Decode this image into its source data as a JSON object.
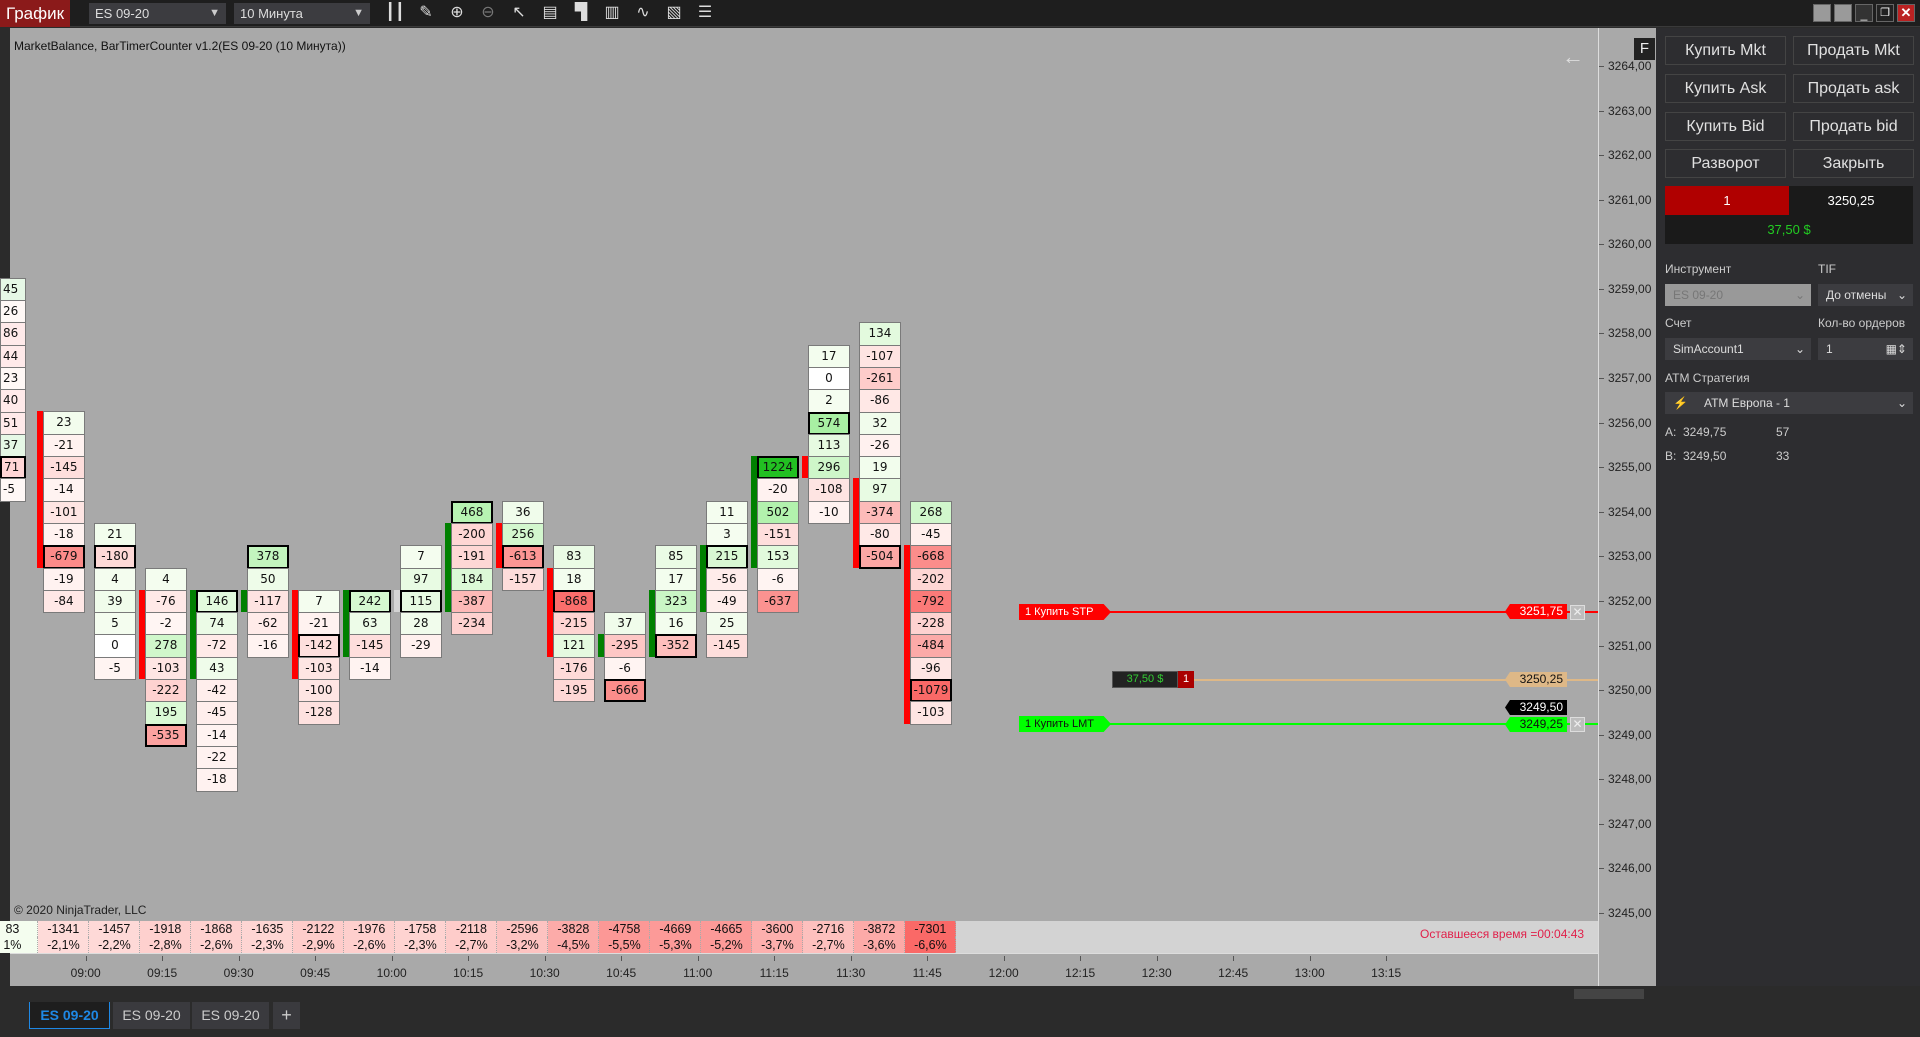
{
  "toolbar": {
    "chart_button": "График",
    "instrument": "ES 09-20",
    "interval": "10 Минута",
    "tools": [
      "bar-type-icon",
      "pencil-icon",
      "zoom-in-icon",
      "zoom-out-icon",
      "pointer-icon",
      "data-box-icon",
      "chart-trader-icon",
      "strategy-icon",
      "indicators-icon",
      "templates-icon",
      "properties-icon"
    ]
  },
  "chart": {
    "indicator_title": "MarketBalance, BarTimerCounter v1.2(ES 09-20 (10 Минута))",
    "f_button": "F",
    "back_arrow": "←",
    "price_labels": [
      "3264,00",
      "3263,00",
      "3262,00",
      "3261,00",
      "3260,00",
      "3259,00",
      "3258,00",
      "3257,00",
      "3256,00",
      "3255,00",
      "3254,00",
      "3253,00",
      "3252,00",
      "3251,00",
      "3250,00",
      "3249,00",
      "3248,00",
      "3247,00",
      "3246,00",
      "3245,00"
    ],
    "time_labels": [
      "09:00",
      "09:15",
      "09:30",
      "09:45",
      "10:00",
      "10:15",
      "10:30",
      "10:45",
      "11:00",
      "11:15",
      "11:30",
      "11:45",
      "12:00",
      "12:15",
      "12:30",
      "12:45",
      "13:00",
      "13:15"
    ],
    "columns": [
      {
        "top": 3259.0,
        "values": [
          "45",
          "26",
          "86",
          "44",
          "23",
          "40",
          "51",
          "37",
          "71",
          "-5"
        ],
        "hl": 8,
        "partial": true,
        "tones": [
          1,
          0,
          -1,
          -1,
          0,
          -1,
          -1,
          1,
          -2,
          0
        ]
      },
      {
        "top": 3256.0,
        "values": [
          "23",
          "-21",
          "-145",
          "-14",
          "-101",
          "-18",
          "-679",
          "-19",
          "-84"
        ],
        "hl": 6,
        "bar": {
          "color": "#ff0000",
          "from": 0,
          "to": 6
        }
      },
      {
        "top": 3253.5,
        "values": [
          "21",
          "-180",
          "4",
          "39",
          "5",
          "0",
          "-5"
        ],
        "hl": 1
      },
      {
        "top": 3252.5,
        "values": [
          "4",
          "-76",
          "-2",
          "278",
          "-103",
          "-222",
          "195",
          "-535"
        ],
        "hl": 7,
        "bar": {
          "color": "#ff0000",
          "from": 1,
          "to": 4
        }
      },
      {
        "top": 3252.0,
        "values": [
          "146",
          "74",
          "-72",
          "43",
          "-42",
          "-45",
          "-14",
          "-22",
          "-18"
        ],
        "hl": 0,
        "bar": {
          "color": "#008000",
          "from": 0,
          "to": 3
        }
      },
      {
        "top": 3253.0,
        "values": [
          "378",
          "50",
          "-117",
          "-62",
          "-16"
        ],
        "hl": 0,
        "bar": {
          "color": "#008000",
          "from": 2,
          "to": 2
        }
      },
      {
        "top": 3252.0,
        "values": [
          "7",
          "-21",
          "-142",
          "-103",
          "-100",
          "-128"
        ],
        "hl": 2,
        "bar": {
          "color": "#ff0000",
          "from": 0,
          "to": 3
        }
      },
      {
        "top": 3252.0,
        "values": [
          "242",
          "63",
          "-145",
          "-14"
        ],
        "hl": 0,
        "bar": {
          "color": "#008000",
          "from": 0,
          "to": 2
        }
      },
      {
        "top": 3253.0,
        "values": [
          "7",
          "97",
          "115",
          "28",
          "-29"
        ],
        "hl": 2,
        "bar": {
          "color": "#d3d3d3",
          "from": 2,
          "to": 2
        }
      },
      {
        "top": 3254.0,
        "values": [
          "468",
          "-200",
          "-191",
          "184",
          "-387",
          "-234"
        ],
        "hl": 0,
        "bar": {
          "color": "#008000",
          "from": 1,
          "to": 4
        }
      },
      {
        "top": 3254.0,
        "values": [
          "36",
          "256",
          "-613",
          "-157"
        ],
        "hl": 2,
        "bar": {
          "color": "#ff0000",
          "from": 1,
          "to": 2
        }
      },
      {
        "top": 3253.0,
        "values": [
          "83",
          "18",
          "-868",
          "-215",
          "121",
          "-176",
          "-195"
        ],
        "hl": 2,
        "bar": {
          "color": "#ff0000",
          "from": 1,
          "to": 4
        }
      },
      {
        "top": 3251.5,
        "values": [
          "37",
          "-295",
          "-6",
          "-666"
        ],
        "hl": 3,
        "bar": {
          "color": "#008000",
          "from": 1,
          "to": 1
        }
      },
      {
        "top": 3253.0,
        "values": [
          "85",
          "17",
          "323",
          "16",
          "-352"
        ],
        "hl": 4,
        "bar": {
          "color": "#008000",
          "from": 2,
          "to": 4
        }
      },
      {
        "top": 3254.0,
        "values": [
          "11",
          "3",
          "215",
          "-56",
          "-49",
          "25",
          "-145"
        ],
        "hl": 2,
        "bar": {
          "color": "#008000",
          "from": 2,
          "to": 4
        }
      },
      {
        "top": 3255.0,
        "values": [
          "1224",
          "-20",
          "502",
          "-151",
          "153",
          "-6",
          "-637"
        ],
        "hl": 0,
        "bar": {
          "color": "#008000",
          "from": 0,
          "to": 4
        }
      },
      {
        "top": 3257.5,
        "values": [
          "17",
          "0",
          "2",
          "574",
          "113",
          "296",
          "-108",
          "-10"
        ],
        "hl": 3,
        "bar": {
          "color": "#ff0000",
          "from": 5,
          "to": 5
        }
      },
      {
        "top": 3258.0,
        "values": [
          "134",
          "-107",
          "-261",
          "-86",
          "32",
          "-26",
          "19",
          "97",
          "-374",
          "-80",
          "-504"
        ],
        "hl": 10,
        "bar": {
          "color": "#ff0000",
          "from": 7,
          "to": 10
        }
      },
      {
        "top": 3254.0,
        "values": [
          "268",
          "-45",
          "-668",
          "-202",
          "-792",
          "-228",
          "-484",
          "-96",
          "-1079",
          "-103"
        ],
        "hl": 8,
        "bar": {
          "color": "#ff0000",
          "from": 2,
          "to": 9
        }
      }
    ],
    "bottom_delta": [
      "83",
      "-1341",
      "-1457",
      "-1918",
      "-1868",
      "-1635",
      "-2122",
      "-1976",
      "-1758",
      "-2118",
      "-2596",
      "-3828",
      "-4758",
      "-4669",
      "-4665",
      "-3600",
      "-2716",
      "-3872",
      "-7301"
    ],
    "bottom_pct": [
      "1%",
      "-2,1%",
      "-2,2%",
      "-2,8%",
      "-2,6%",
      "-2,3%",
      "-2,9%",
      "-2,6%",
      "-2,3%",
      "-2,7%",
      "-3,2%",
      "-4,5%",
      "-5,5%",
      "-5,3%",
      "-5,2%",
      "-3,7%",
      "-2,7%",
      "-3,6%",
      "-6,6%"
    ],
    "watermark": "© 2020 NinjaTrader, LLC",
    "timer": "Оставшееся время =00:04:43",
    "orders": {
      "stop": {
        "label": "1  Купить STP",
        "price": "3251,75",
        "color": "#ff0000"
      },
      "position": {
        "pnl": "37,50 $",
        "qty": "1",
        "price": "3250,25",
        "color": "#deb887"
      },
      "limit": {
        "label": "1  Купить LMT",
        "price": "3249,25",
        "color": "#00ff00"
      },
      "last_price": "3249,50"
    }
  },
  "panel": {
    "buttons": [
      "Купить Mkt",
      "Продать Mkt",
      "Купить Ask",
      "Продать ask",
      "Купить Bid",
      "Продать bid",
      "Разворот",
      "Закрыть"
    ],
    "position_qty": "1",
    "position_price": "3250,25",
    "pnl": "37,50 $",
    "instrument_label": "Инструмент",
    "instrument_value": "ES 09-20",
    "tif_label": "TIF",
    "tif_value": "До отмены",
    "account_label": "Счет",
    "account_value": "SimAccount1",
    "qty_label": "Кол-во ордеров",
    "qty_value": "1",
    "atm_label": "ATM Стратегия",
    "atm_value": "ATM Европа - 1",
    "ask_label": "A:",
    "ask_price": "3249,75",
    "ask_size": "57",
    "bid_label": "B:",
    "bid_price": "3249,50",
    "bid_size": "33"
  },
  "tabs": [
    "ES 09-20",
    "ES 09-20",
    "ES 09-20"
  ],
  "tab_add": "+",
  "colors": {
    "accent": "#007acc",
    "chart_bg": "#a9a9a9",
    "buy": "#00ff00",
    "sell": "#ff0000"
  }
}
